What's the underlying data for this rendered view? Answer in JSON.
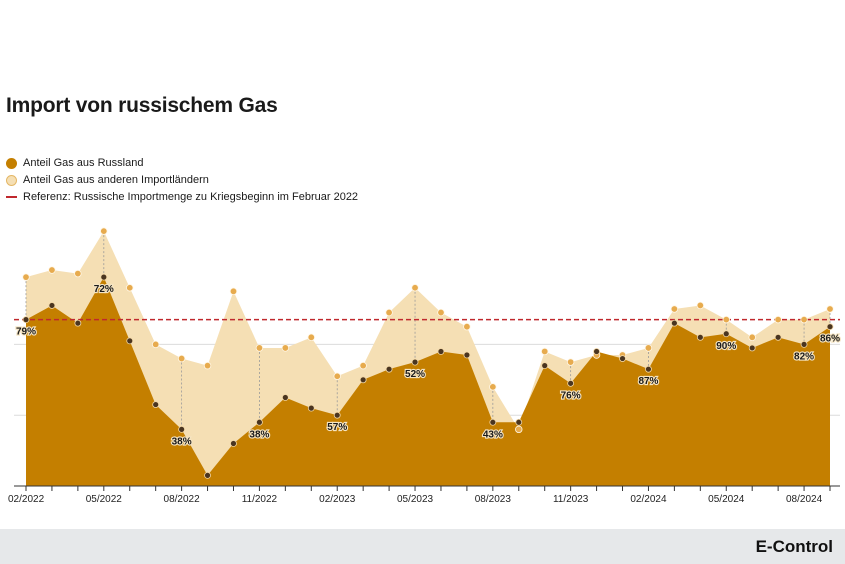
{
  "title": "Import von russischem Gas",
  "legend": [
    {
      "label": "Anteil Gas aus Russland",
      "color": "#c47f00",
      "kind": "dot"
    },
    {
      "label": "Anteil Gas aus anderen Importländern",
      "color": "#f5dfb4",
      "kind": "dot"
    },
    {
      "label": "Referenz: Russische Importmenge zu Kriegsbeginn im Februar 2022",
      "color": "#c0282d",
      "kind": "dashed-line"
    }
  ],
  "footer": {
    "brand": "E-Control",
    "edge_mark": " "
  },
  "colors": {
    "russia": "#c47f00",
    "other": "#f5dfb4",
    "reference": "#c0282d",
    "point_total": "#e7ab4e",
    "point_russia": "#4a3520"
  },
  "chart_data": {
    "type": "area",
    "stacked": true,
    "x": [
      "02/2022",
      "03/2022",
      "04/2022",
      "05/2022",
      "06/2022",
      "07/2022",
      "08/2022",
      "09/2022",
      "10/2022",
      "11/2022",
      "12/2022",
      "01/2023",
      "02/2023",
      "03/2023",
      "04/2023",
      "05/2023",
      "06/2023",
      "07/2023",
      "08/2023",
      "09/2023",
      "10/2023",
      "11/2023",
      "12/2023",
      "01/2024",
      "02/2024",
      "03/2024",
      "04/2024",
      "05/2024",
      "06/2024",
      "07/2024",
      "08/2024",
      "09/2024"
    ],
    "xtick_labels": [
      "02/2022",
      "05/2022",
      "08/2022",
      "11/2022",
      "02/2023",
      "05/2023",
      "08/2023",
      "11/2023",
      "02/2024",
      "05/2024",
      "08/2024"
    ],
    "series": [
      {
        "name": "Anteil Gas aus Russland",
        "values": [
          47,
          51,
          46,
          59,
          41,
          23,
          16,
          3,
          12,
          18,
          25,
          22,
          20,
          30,
          33,
          35,
          38,
          37,
          18,
          18,
          34,
          29,
          38,
          36,
          33,
          46,
          42,
          43,
          39,
          42,
          40,
          45
        ]
      },
      {
        "name": "Anteil Gas aus anderen Importländern",
        "values": [
          12,
          10,
          14,
          13,
          15,
          17,
          20,
          31,
          43,
          21,
          14,
          20,
          11,
          4,
          16,
          21,
          11,
          8,
          10,
          -2,
          4,
          6,
          -1,
          1,
          6,
          4,
          9,
          4,
          3,
          5,
          7,
          5
        ]
      }
    ],
    "totals": [
      59,
      61,
      60,
      72,
      56,
      40,
      36,
      34,
      55,
      39,
      39,
      42,
      31,
      34,
      49,
      56,
      49,
      45,
      28,
      16,
      38,
      35,
      37,
      37,
      39,
      50,
      51,
      47,
      42,
      47,
      47,
      50
    ],
    "share_labels": [
      {
        "x": "02/2022",
        "text": "79%"
      },
      {
        "x": "05/2022",
        "text": "72%"
      },
      {
        "x": "08/2022",
        "text": "38%"
      },
      {
        "x": "11/2022",
        "text": "38%"
      },
      {
        "x": "02/2023",
        "text": "57%"
      },
      {
        "x": "05/2023",
        "text": "52%"
      },
      {
        "x": "08/2023",
        "text": "43%"
      },
      {
        "x": "11/2023",
        "text": "76%"
      },
      {
        "x": "02/2024",
        "text": "87%"
      },
      {
        "x": "05/2024",
        "text": "90%"
      },
      {
        "x": "08/2024",
        "text": "82%"
      },
      {
        "x": "09/2024",
        "text": "86%"
      }
    ],
    "reference": 47,
    "ylim": [
      0,
      100
    ],
    "grid": true,
    "legend_position": "top-left"
  }
}
